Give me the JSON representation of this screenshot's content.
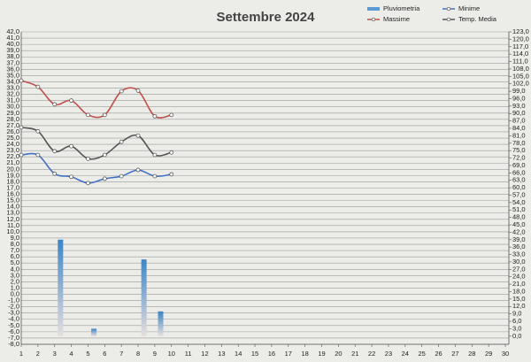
{
  "chart_data": {
    "type": "line",
    "title": "Settembre 2024",
    "categories": [
      "1",
      "2",
      "3",
      "4",
      "5",
      "6",
      "7",
      "8",
      "9",
      "10",
      "11",
      "12",
      "13",
      "14",
      "15",
      "16",
      "17",
      "18",
      "19",
      "20",
      "21",
      "22",
      "23",
      "24",
      "25",
      "26",
      "27",
      "28",
      "29",
      "30"
    ],
    "series": [
      {
        "name": "Pluviometria",
        "type": "bar",
        "axis": "y2",
        "color": "#5b9bd5",
        "values": [
          null,
          null,
          39,
          null,
          3,
          null,
          null,
          31,
          10,
          null,
          null,
          null,
          null,
          null,
          null,
          null,
          null,
          null,
          null,
          null,
          null,
          null,
          null,
          null,
          null,
          null,
          null,
          null,
          null,
          null
        ]
      },
      {
        "name": "Minime",
        "color": "#4472c4",
        "values": [
          22.3,
          22.3,
          19.3,
          18.8,
          17.8,
          18.5,
          18.9,
          19.9,
          18.9,
          19.2,
          null,
          null,
          null,
          null,
          null,
          null,
          null,
          null,
          null,
          null,
          null,
          null,
          null,
          null,
          null,
          null,
          null,
          null,
          null,
          null
        ]
      },
      {
        "name": "Massime",
        "color": "#c0504d",
        "values": [
          34.2,
          33.2,
          30.4,
          31,
          28.7,
          28.7,
          32.5,
          32.6,
          28.5,
          28.7,
          null,
          null,
          null,
          null,
          null,
          null,
          null,
          null,
          null,
          null,
          null,
          null,
          null,
          null,
          null,
          null,
          null,
          null,
          null,
          null
        ]
      },
      {
        "name": "Temp. Media",
        "color": "#555555",
        "values": [
          26.7,
          26.1,
          22.9,
          23.7,
          21.7,
          22.3,
          24.4,
          25.4,
          22.3,
          22.7,
          null,
          null,
          null,
          null,
          null,
          null,
          null,
          null,
          null,
          null,
          null,
          null,
          null,
          null,
          null,
          null,
          null,
          null,
          null,
          null
        ]
      }
    ],
    "ylim": [
      -8,
      42
    ],
    "yticks": [
      {
        "value": 42,
        "label": "42,0"
      },
      {
        "value": 41,
        "label": "41,0"
      },
      {
        "value": 40,
        "label": "40,0"
      },
      {
        "value": 39,
        "label": "39,0"
      },
      {
        "value": 38,
        "label": "38,0"
      },
      {
        "value": 37,
        "label": "37,0"
      },
      {
        "value": 36,
        "label": "36,0"
      },
      {
        "value": 35,
        "label": "35,0"
      },
      {
        "value": 34,
        "label": "34,0"
      },
      {
        "value": 33,
        "label": "33,0"
      },
      {
        "value": 32,
        "label": "32,0"
      },
      {
        "value": 31,
        "label": "31,0"
      },
      {
        "value": 30,
        "label": "30,0"
      },
      {
        "value": 29,
        "label": "29,0"
      },
      {
        "value": 28,
        "label": "28,0"
      },
      {
        "value": 27,
        "label": "27,0"
      },
      {
        "value": 26,
        "label": "26,0"
      },
      {
        "value": 25,
        "label": "25,0"
      },
      {
        "value": 24,
        "label": "24,0"
      },
      {
        "value": 23,
        "label": "23,0"
      },
      {
        "value": 22,
        "label": "22,0"
      },
      {
        "value": 21,
        "label": "21,0"
      },
      {
        "value": 20,
        "label": "20,0"
      },
      {
        "value": 19,
        "label": "19,0"
      },
      {
        "value": 18,
        "label": "18,0"
      },
      {
        "value": 17,
        "label": "17,0"
      },
      {
        "value": 16,
        "label": "16,0"
      },
      {
        "value": 15,
        "label": "15,0"
      },
      {
        "value": 14,
        "label": "14,0"
      },
      {
        "value": 13,
        "label": "13,0"
      },
      {
        "value": 12,
        "label": "12,0"
      },
      {
        "value": 11,
        "label": "11,0"
      },
      {
        "value": 10,
        "label": "10,0"
      },
      {
        "value": 9,
        "label": "9,0"
      },
      {
        "value": 8,
        "label": "8,0"
      },
      {
        "value": 7,
        "label": "7,0"
      },
      {
        "value": 6,
        "label": "6,0"
      },
      {
        "value": 5,
        "label": "5,0"
      },
      {
        "value": 4,
        "label": "4,0"
      },
      {
        "value": 3,
        "label": "3,0"
      },
      {
        "value": 2,
        "label": "2,0"
      },
      {
        "value": 1,
        "label": "1,0"
      },
      {
        "value": 0,
        "label": "0,0"
      },
      {
        "value": -1,
        "label": "-1,0"
      },
      {
        "value": -2,
        "label": "-2,0"
      },
      {
        "value": -3,
        "label": "-3,0"
      },
      {
        "value": -4,
        "label": "-4,0"
      },
      {
        "value": -5,
        "label": "-5,0"
      },
      {
        "value": -6,
        "label": "-6,0"
      },
      {
        "value": -7,
        "label": "-7,0"
      },
      {
        "value": -8,
        "label": "-8,0"
      }
    ],
    "y2lim": [
      -3.3,
      123
    ],
    "y2ticks": [
      {
        "value": 123,
        "label": "123,0"
      },
      {
        "value": 120,
        "label": "120,0"
      },
      {
        "value": 117,
        "label": "117,0"
      },
      {
        "value": 114,
        "label": "114,0"
      },
      {
        "value": 111,
        "label": "111,0"
      },
      {
        "value": 108,
        "label": "108,0"
      },
      {
        "value": 105,
        "label": "105,0"
      },
      {
        "value": 102,
        "label": "102,0"
      },
      {
        "value": 99,
        "label": "99,0"
      },
      {
        "value": 96,
        "label": "96,0"
      },
      {
        "value": 93,
        "label": "93,0"
      },
      {
        "value": 90,
        "label": "90,0"
      },
      {
        "value": 87,
        "label": "87,0"
      },
      {
        "value": 84,
        "label": "84,0"
      },
      {
        "value": 81,
        "label": "81,0"
      },
      {
        "value": 78,
        "label": "78,0"
      },
      {
        "value": 75,
        "label": "75,0"
      },
      {
        "value": 72,
        "label": "72,0"
      },
      {
        "value": 69,
        "label": "69,0"
      },
      {
        "value": 66,
        "label": "66,0"
      },
      {
        "value": 63,
        "label": "63,0"
      },
      {
        "value": 60,
        "label": "60,0"
      },
      {
        "value": 57,
        "label": "57,0"
      },
      {
        "value": 54,
        "label": "54,0"
      },
      {
        "value": 51,
        "label": "51,0"
      },
      {
        "value": 48,
        "label": "48,0"
      },
      {
        "value": 45,
        "label": "45,0"
      },
      {
        "value": 42,
        "label": "42,0"
      },
      {
        "value": 39,
        "label": "39,0"
      },
      {
        "value": 36,
        "label": "36,0"
      },
      {
        "value": 33,
        "label": "33,0"
      },
      {
        "value": 30,
        "label": "30,0"
      },
      {
        "value": 27,
        "label": "27,0"
      },
      {
        "value": 24,
        "label": "24,0"
      },
      {
        "value": 21,
        "label": "21,0"
      },
      {
        "value": 18,
        "label": "18,0"
      },
      {
        "value": 15,
        "label": "15,0"
      },
      {
        "value": 12,
        "label": "12,0"
      },
      {
        "value": 9,
        "label": "9,0"
      },
      {
        "value": 6,
        "label": "6,0"
      },
      {
        "value": 3,
        "label": "3,0"
      },
      {
        "value": 0,
        "label": "0,0"
      }
    ],
    "grid": true,
    "legend": "top-right"
  }
}
